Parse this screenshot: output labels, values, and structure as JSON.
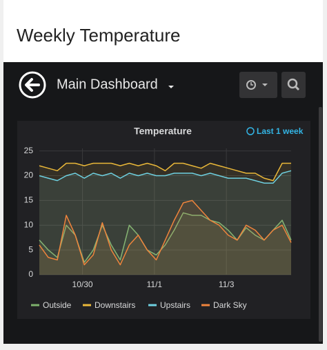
{
  "header": {
    "title": "Weekly Temperature"
  },
  "dashboard": {
    "title": "Main Dashboard"
  },
  "chart_data": {
    "type": "line",
    "title": "Temperature",
    "time_range": "Last 1 week",
    "x": [
      0,
      0.25,
      0.5,
      0.75,
      1,
      1.25,
      1.5,
      1.75,
      2,
      2.25,
      2.5,
      2.75,
      3,
      3.25,
      3.5,
      3.75,
      4,
      4.25,
      4.5,
      4.75,
      5,
      5.25,
      5.5,
      5.75,
      6,
      6.25,
      6.5,
      6.75,
      7
    ],
    "xlim": [
      0,
      7
    ],
    "xticks": [
      {
        "value": 1.2,
        "label": "10/30"
      },
      {
        "value": 3.2,
        "label": "11/1"
      },
      {
        "value": 5.2,
        "label": "11/3"
      }
    ],
    "ylim": [
      0,
      25.5
    ],
    "yticks": [
      0,
      5,
      10,
      15,
      20,
      25
    ],
    "grid": true,
    "series": [
      {
        "name": "Outside",
        "color": "#7eb26d",
        "values": [
          7,
          5,
          3.5,
          10,
          8,
          2.5,
          5,
          10,
          6,
          3,
          10,
          8,
          5,
          4,
          6,
          9,
          12.5,
          12,
          12,
          11,
          10.5,
          9,
          7,
          9.5,
          8,
          7,
          9,
          11,
          7
        ]
      },
      {
        "name": "Downstairs",
        "color": "#eab839",
        "values": [
          22,
          21.5,
          21,
          22.5,
          22.5,
          22,
          22.5,
          22.5,
          22.5,
          22,
          22.5,
          22,
          22.5,
          22,
          21,
          22.5,
          22.5,
          22,
          21.5,
          22.5,
          22,
          21.5,
          21,
          20.5,
          20.5,
          19.5,
          19,
          22.5,
          22.5
        ]
      },
      {
        "name": "Upstairs",
        "color": "#6ed0e0",
        "values": [
          20,
          19.5,
          19,
          20,
          20.5,
          19.5,
          20.5,
          20,
          20.5,
          19.5,
          20.5,
          20,
          20.5,
          20,
          20,
          20.5,
          20.5,
          20.5,
          20,
          20.5,
          20,
          19.5,
          19.5,
          19.5,
          19,
          18.5,
          18.5,
          20.5,
          21
        ]
      },
      {
        "name": "Dark Sky",
        "color": "#ef843c",
        "values": [
          6,
          3.5,
          3,
          12,
          8,
          2,
          4,
          10.5,
          5,
          2,
          6,
          8,
          5,
          3,
          7,
          11,
          14.5,
          15,
          13,
          11,
          10,
          8,
          7,
          10,
          9,
          7,
          9,
          10,
          6.5
        ]
      }
    ]
  }
}
